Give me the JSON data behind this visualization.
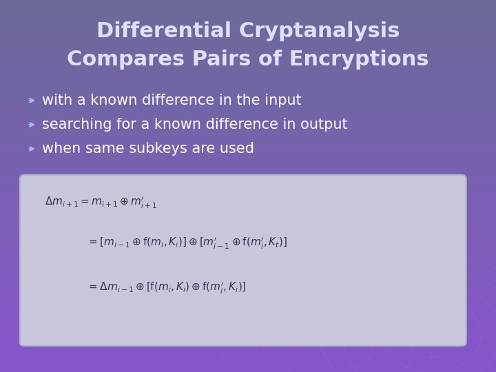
{
  "title_line1": "Differential Cryptanalysis",
  "title_line2": "Compares Pairs of Encryptions",
  "bullets": [
    "with a known difference in the input",
    "searching for a known difference in output",
    "when same subkeys are used"
  ],
  "bg_color_top": "#6b6b99",
  "bg_color_bottom": "#8855cc",
  "title_color": "#dde0ff",
  "bullet_color": "#ffffff",
  "bullet_arrow_color": "#aabbee",
  "box_bg_color": "#d0d0df",
  "box_edge_color": "#b0b0cc",
  "formula_color": "#333355",
  "title_fontsize": 22,
  "bullet_fontsize": 15,
  "formula_fontsize": 11,
  "figsize": [
    7.2,
    5.4
  ],
  "dpi": 100
}
